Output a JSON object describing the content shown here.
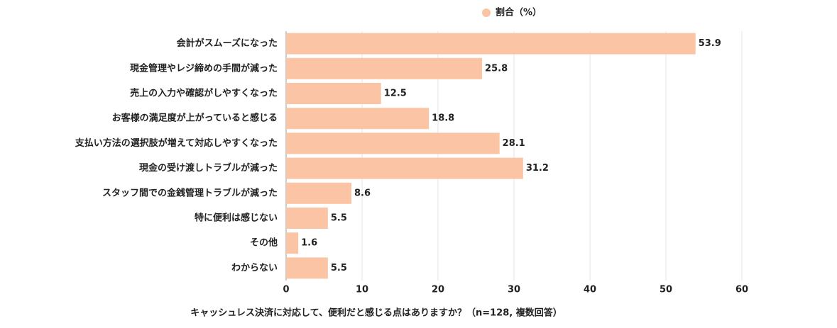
{
  "chart_data": {
    "type": "bar",
    "orientation": "horizontal",
    "legend": "割合（%）",
    "x_label": "キャッシュレス決済に対応して、便利だと感じる点はありますか？（n=128, 複数回答）",
    "categories": [
      "会計がスムーズになった",
      "現金管理やレジ締めの手間が減った",
      "売上の入力や確認がしやすくなった",
      "お客様の満足度が上がっていると感じる",
      "支払い方法の選択肢が増えて対応しやすくなった",
      "現金の受け渡しトラブルが減った",
      "スタッフ間での金銭管理トラブルが減った",
      "特に便利は感じない",
      "その他",
      "わからない"
    ],
    "values": [
      53.9,
      25.8,
      12.5,
      18.8,
      28.1,
      31.2,
      8.6,
      5.5,
      1.6,
      5.5
    ],
    "color": "#fbc4a4",
    "xlim": [
      0,
      60
    ],
    "xticks": [
      0,
      10,
      20,
      30,
      40,
      50,
      60
    ],
    "grid": true
  }
}
